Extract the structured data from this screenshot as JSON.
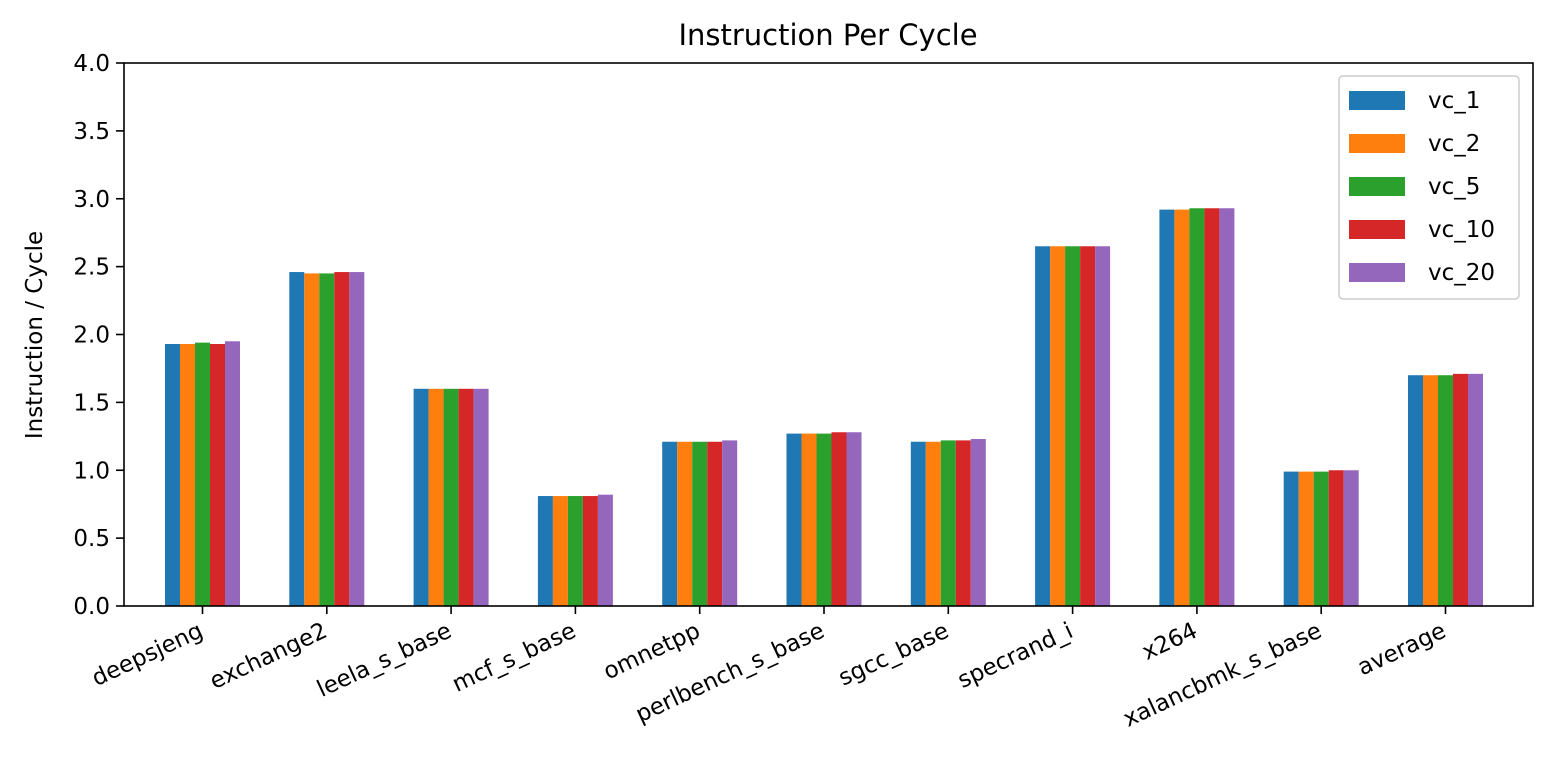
{
  "chart_data": {
    "type": "bar",
    "title": "Instruction Per Cycle",
    "xlabel": "",
    "ylabel": "Instruction / Cycle",
    "ylim": [
      0,
      4.0
    ],
    "yticks": [
      "0.0",
      "0.5",
      "1.0",
      "1.5",
      "2.0",
      "2.5",
      "3.0",
      "3.5",
      "4.0"
    ],
    "grid": false,
    "legend_position": "top-right",
    "categories": [
      "deepsjeng",
      "exchange2",
      "leela_s_base",
      "mcf_s_base",
      "omnetpp",
      "perlbench_s_base",
      "sgcc_base",
      "specrand_i",
      "x264",
      "xalancbmk_s_base",
      "average"
    ],
    "series": [
      {
        "name": "vc_1",
        "color": "#1f77b4",
        "values": [
          1.93,
          2.46,
          1.6,
          0.81,
          1.21,
          1.27,
          1.21,
          2.65,
          2.92,
          0.99,
          1.7
        ]
      },
      {
        "name": "vc_2",
        "color": "#ff7f0e",
        "values": [
          1.93,
          2.45,
          1.6,
          0.81,
          1.21,
          1.27,
          1.21,
          2.65,
          2.92,
          0.99,
          1.7
        ]
      },
      {
        "name": "vc_5",
        "color": "#2ca02c",
        "values": [
          1.94,
          2.45,
          1.6,
          0.81,
          1.21,
          1.27,
          1.22,
          2.65,
          2.93,
          0.99,
          1.7
        ]
      },
      {
        "name": "vc_10",
        "color": "#d62728",
        "values": [
          1.93,
          2.46,
          1.6,
          0.81,
          1.21,
          1.28,
          1.22,
          2.65,
          2.93,
          1.0,
          1.71
        ]
      },
      {
        "name": "vc_20",
        "color": "#9467bd",
        "values": [
          1.95,
          2.46,
          1.6,
          0.82,
          1.22,
          1.28,
          1.23,
          2.65,
          2.93,
          1.0,
          1.71
        ]
      }
    ]
  }
}
